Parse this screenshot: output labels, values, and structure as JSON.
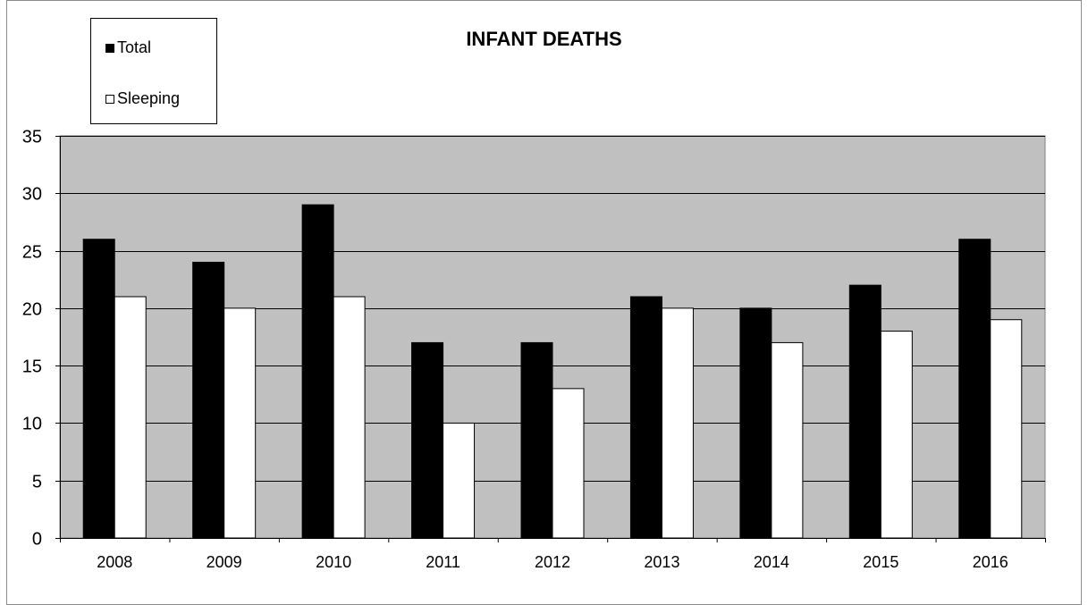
{
  "chart_data": {
    "type": "bar",
    "title": "INFANT DEATHS",
    "categories": [
      "2008",
      "2009",
      "2010",
      "2011",
      "2012",
      "2013",
      "2014",
      "2015",
      "2016"
    ],
    "series": [
      {
        "name": "Total",
        "values": [
          26,
          24,
          29,
          17,
          17,
          21,
          20,
          22,
          26
        ],
        "color": "#000000"
      },
      {
        "name": "Sleeping",
        "values": [
          21,
          20,
          21,
          10,
          13,
          20,
          17,
          18,
          19
        ],
        "color": "#ffffff"
      }
    ],
    "ylim": [
      0,
      35
    ],
    "yticks": [
      0,
      5,
      10,
      15,
      20,
      25,
      30,
      35
    ],
    "xlabel": "",
    "ylabel": "",
    "grid": true,
    "legend_position": "top-left",
    "plot_background": "#c0c0c0"
  }
}
